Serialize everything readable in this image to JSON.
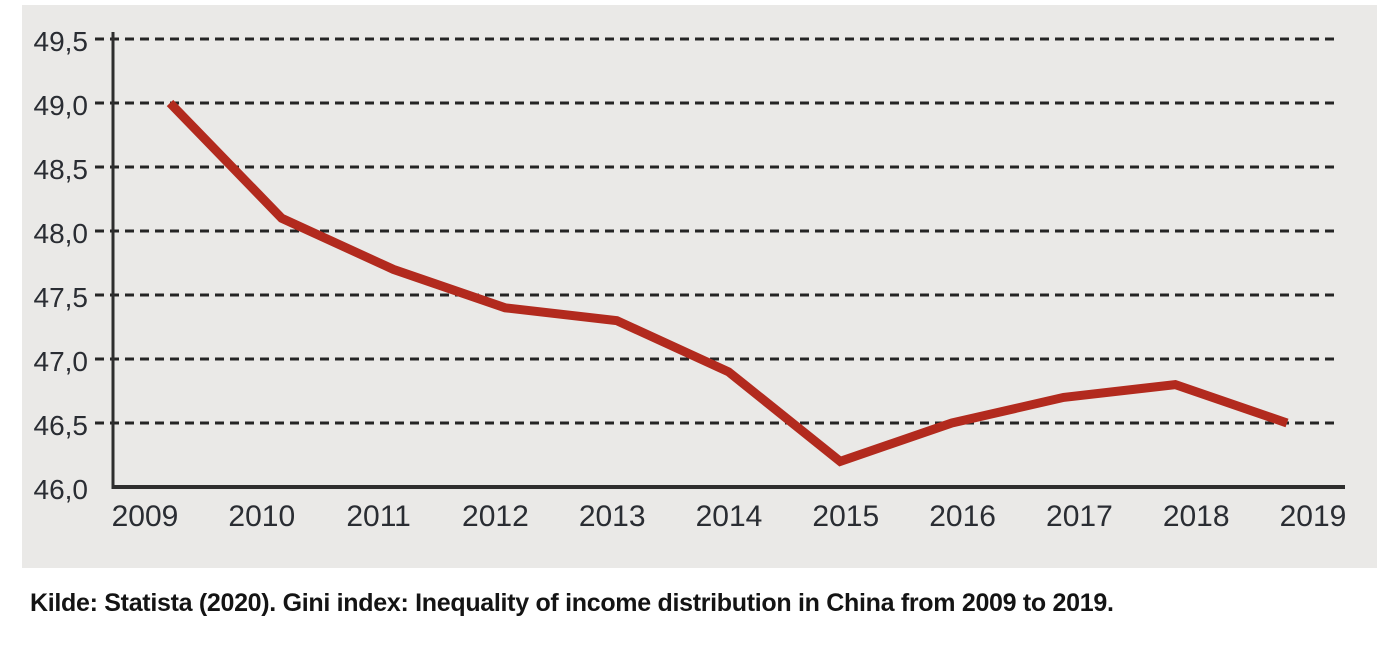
{
  "caption": {
    "text": "Kilde: Statista (2020). Gini index: Inequality of income distribution in China from 2009 to 2019."
  },
  "chart_data": {
    "type": "line",
    "title": "",
    "x": [
      2009,
      2010,
      2011,
      2012,
      2013,
      2014,
      2015,
      2016,
      2017,
      2018,
      2019
    ],
    "x_tick_labels": [
      "2009",
      "2010",
      "2011",
      "2012",
      "2013",
      "2014",
      "2015",
      "2016",
      "2017",
      "2018",
      "2019"
    ],
    "series": [
      {
        "name": "Gini index China",
        "values": [
          49.0,
          48.1,
          47.7,
          47.4,
          47.3,
          46.9,
          46.2,
          46.5,
          46.7,
          46.8,
          46.5
        ]
      }
    ],
    "ylim": [
      46.0,
      49.5
    ],
    "ytick_step": 0.5,
    "y_tick_labels": [
      "46,0",
      "46,5",
      "47,0",
      "47,5",
      "48,0",
      "48,5",
      "49,0",
      "49,5"
    ],
    "decimal_separator": ",",
    "grid": "horizontal-dashed",
    "legend": "none",
    "colors": {
      "line": "#b22a1e",
      "panel_background": "#eae9e7",
      "axis": "#2e2e2e",
      "gridline": "#252525",
      "tick_label": "#2a2d33",
      "caption_text": "#141414"
    }
  }
}
